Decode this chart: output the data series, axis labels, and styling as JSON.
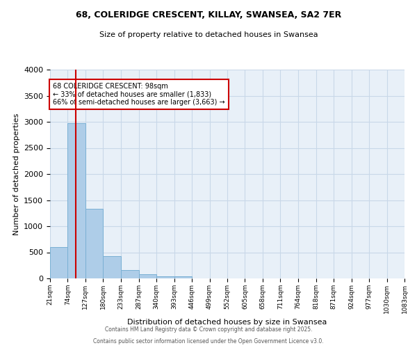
{
  "title_line1": "68, COLERIDGE CRESCENT, KILLAY, SWANSEA, SA2 7ER",
  "title_line2": "Size of property relative to detached houses in Swansea",
  "xlabel": "Distribution of detached houses by size in Swansea",
  "ylabel": "Number of detached properties",
  "bin_edges": [
    21,
    74,
    127,
    180,
    233,
    287,
    340,
    393,
    446,
    499,
    552,
    605,
    658,
    711,
    764,
    818,
    871,
    924,
    977,
    1030,
    1083
  ],
  "bar_heights": [
    600,
    2980,
    1340,
    430,
    165,
    75,
    45,
    45,
    0,
    0,
    0,
    0,
    0,
    0,
    0,
    0,
    0,
    0,
    0,
    0
  ],
  "bar_color": "#aecde8",
  "bar_edgecolor": "#7ab0d4",
  "grid_color": "#c8d8e8",
  "bg_color": "#e8f0f8",
  "vline_x": 98,
  "vline_color": "#cc0000",
  "annotation_text": "68 COLERIDGE CRESCENT: 98sqm\n← 33% of detached houses are smaller (1,833)\n66% of semi-detached houses are larger (3,663) →",
  "annotation_box_color": "#cc0000",
  "ylim": [
    0,
    4000
  ],
  "yticks": [
    0,
    500,
    1000,
    1500,
    2000,
    2500,
    3000,
    3500,
    4000
  ],
  "tick_labels": [
    "21sqm",
    "74sqm",
    "127sqm",
    "180sqm",
    "233sqm",
    "287sqm",
    "340sqm",
    "393sqm",
    "446sqm",
    "499sqm",
    "552sqm",
    "605sqm",
    "658sqm",
    "711sqm",
    "764sqm",
    "818sqm",
    "871sqm",
    "924sqm",
    "977sqm",
    "1030sqm",
    "1083sqm"
  ],
  "footer_line1": "Contains HM Land Registry data © Crown copyright and database right 2025.",
  "footer_line2": "Contains public sector information licensed under the Open Government Licence v3.0."
}
